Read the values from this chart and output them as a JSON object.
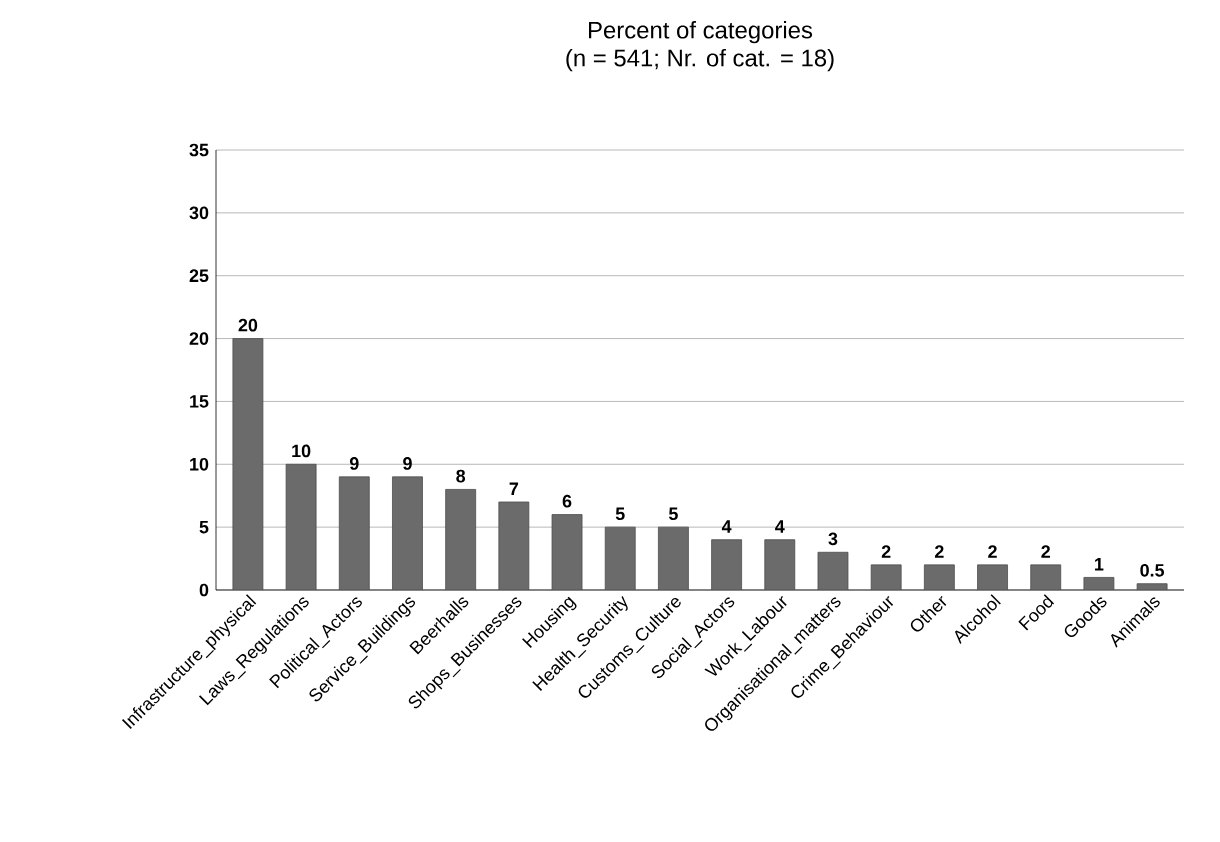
{
  "chart_data": {
    "type": "bar",
    "title": "Percent of categories",
    "subtitle": "(n = 541; Nr. of cat. = 18)",
    "categories": [
      "Infrastructure_physical",
      "Laws_Regulations",
      "Political_Actors",
      "Service_Buildings",
      "Beerhalls",
      "Shops_Businesses",
      "Housing",
      "Health_Security",
      "Customs_Culture",
      "Social_Actors",
      "Work_Labour",
      "Organisational_matters",
      "Crime_Behaviour",
      "Other",
      "Alcohol",
      "Food",
      "Goods",
      "Animals"
    ],
    "values": [
      20,
      10,
      9,
      9,
      8,
      7,
      6,
      5,
      5,
      4,
      4,
      3,
      2,
      2,
      2,
      2,
      1,
      0.5
    ],
    "color": "#6b6b6b",
    "ylim": [
      0,
      35
    ],
    "yticks": [
      0,
      5,
      10,
      15,
      20,
      25,
      30,
      35
    ],
    "grid": "y",
    "data_labels": true
  }
}
